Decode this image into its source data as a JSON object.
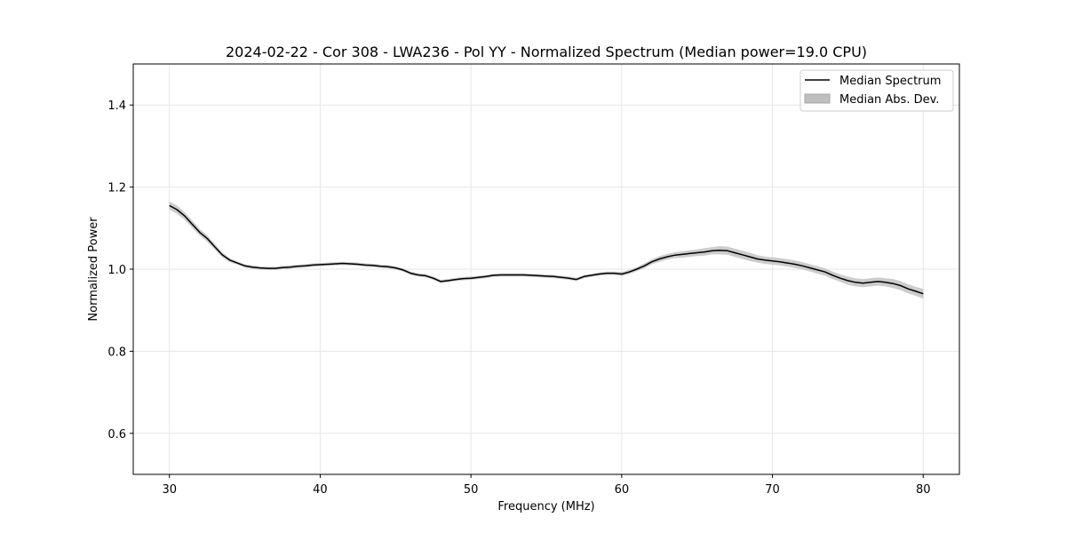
{
  "chart_data": {
    "type": "line",
    "title": "2024-02-22 - Cor 308 - LWA236 - Pol YY - Normalized Spectrum (Median power=19.0 CPU)",
    "xlabel": "Frequency (MHz)",
    "ylabel": "Normalized Power",
    "xlim": [
      27.6,
      82.4
    ],
    "ylim": [
      0.5,
      1.5
    ],
    "xticks": [
      30,
      40,
      50,
      60,
      70,
      80
    ],
    "xtick_labels": [
      "30",
      "40",
      "50",
      "60",
      "70",
      "80"
    ],
    "yticks": [
      0.6,
      0.8,
      1.0,
      1.2,
      1.4
    ],
    "ytick_labels": [
      "0.6",
      "0.8",
      "1.0",
      "1.2",
      "1.4"
    ],
    "grid": true,
    "legend_position": "top-right",
    "legend": {
      "line_label": "Median Spectrum",
      "band_label": "Median Abs. Dev."
    },
    "colors": {
      "line": "#000000",
      "band": "#bfbfbf",
      "grid": "#e6e6e6"
    },
    "series": [
      {
        "name": "Median Spectrum",
        "x": [
          30,
          30.5,
          31,
          31.5,
          32,
          32.5,
          33,
          33.5,
          34,
          34.5,
          35,
          35.5,
          36,
          36.5,
          37,
          37.5,
          38,
          38.5,
          39,
          39.5,
          40,
          40.5,
          41,
          41.5,
          42,
          42.5,
          43,
          43.5,
          44,
          44.5,
          45,
          45.5,
          46,
          46.5,
          47,
          47.5,
          48,
          48.5,
          49,
          49.5,
          50,
          50.5,
          51,
          51.5,
          52,
          52.5,
          53,
          53.5,
          54,
          54.5,
          55,
          55.5,
          56,
          56.5,
          57,
          57.5,
          58,
          58.5,
          59,
          59.5,
          60,
          60.5,
          61,
          61.5,
          62,
          62.5,
          63,
          63.5,
          64,
          64.5,
          65,
          65.5,
          66,
          66.5,
          67,
          67.5,
          68,
          68.5,
          69,
          69.5,
          70,
          70.5,
          71,
          71.5,
          72,
          72.5,
          73,
          73.5,
          74,
          74.5,
          75,
          75.5,
          76,
          76.5,
          77,
          77.5,
          78,
          78.5,
          79,
          79.5,
          80
        ],
        "y": [
          1.155,
          1.145,
          1.13,
          1.11,
          1.09,
          1.075,
          1.055,
          1.035,
          1.022,
          1.015,
          1.008,
          1.005,
          1.003,
          1.002,
          1.002,
          1.004,
          1.005,
          1.007,
          1.008,
          1.01,
          1.011,
          1.012,
          1.013,
          1.014,
          1.013,
          1.012,
          1.01,
          1.009,
          1.007,
          1.006,
          1.003,
          0.998,
          0.99,
          0.986,
          0.984,
          0.978,
          0.97,
          0.972,
          0.975,
          0.977,
          0.978,
          0.98,
          0.982,
          0.985,
          0.986,
          0.986,
          0.986,
          0.986,
          0.985,
          0.984,
          0.983,
          0.982,
          0.98,
          0.978,
          0.975,
          0.982,
          0.985,
          0.988,
          0.99,
          0.99,
          0.988,
          0.993,
          1.0,
          1.008,
          1.018,
          1.025,
          1.03,
          1.034,
          1.036,
          1.038,
          1.04,
          1.042,
          1.045,
          1.046,
          1.045,
          1.04,
          1.035,
          1.03,
          1.025,
          1.022,
          1.02,
          1.018,
          1.015,
          1.012,
          1.008,
          1.003,
          0.998,
          0.993,
          0.985,
          0.978,
          0.972,
          0.968,
          0.966,
          0.968,
          0.97,
          0.968,
          0.965,
          0.96,
          0.952,
          0.946,
          0.94
        ],
        "mad": [
          0.01,
          0.01,
          0.009,
          0.009,
          0.008,
          0.008,
          0.007,
          0.006,
          0.005,
          0.004,
          0.004,
          0.004,
          0.004,
          0.004,
          0.004,
          0.004,
          0.004,
          0.004,
          0.004,
          0.004,
          0.004,
          0.004,
          0.004,
          0.004,
          0.004,
          0.004,
          0.004,
          0.004,
          0.004,
          0.004,
          0.004,
          0.004,
          0.004,
          0.004,
          0.004,
          0.004,
          0.004,
          0.004,
          0.004,
          0.004,
          0.004,
          0.004,
          0.004,
          0.004,
          0.004,
          0.004,
          0.004,
          0.004,
          0.004,
          0.004,
          0.004,
          0.004,
          0.004,
          0.004,
          0.004,
          0.004,
          0.004,
          0.004,
          0.004,
          0.004,
          0.005,
          0.005,
          0.005,
          0.006,
          0.006,
          0.007,
          0.007,
          0.007,
          0.008,
          0.008,
          0.008,
          0.009,
          0.009,
          0.01,
          0.01,
          0.01,
          0.01,
          0.01,
          0.009,
          0.009,
          0.009,
          0.009,
          0.009,
          0.009,
          0.009,
          0.009,
          0.009,
          0.009,
          0.009,
          0.009,
          0.01,
          0.01,
          0.01,
          0.01,
          0.01,
          0.01,
          0.011,
          0.011,
          0.011,
          0.011,
          0.012
        ]
      }
    ]
  }
}
